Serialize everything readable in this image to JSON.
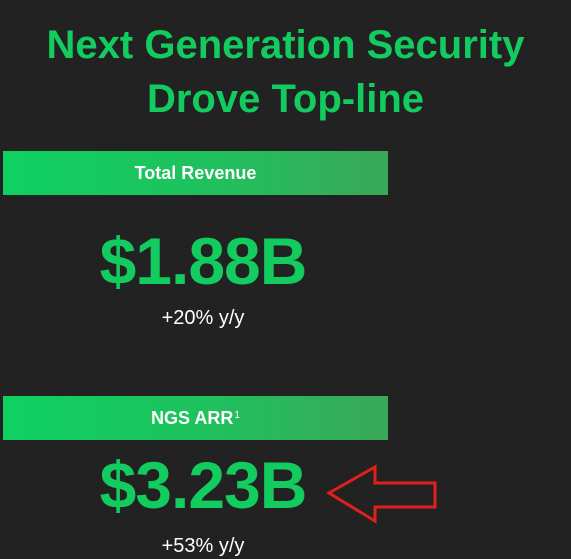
{
  "title": {
    "line1": "Next Generation Security",
    "line2": "Drove Top-line"
  },
  "revenue": {
    "label": "Total Revenue",
    "value": "$1.88B",
    "growth": "+20% y/y"
  },
  "ngs": {
    "label": "NGS ARR",
    "footnote": "1",
    "value": "$3.23B",
    "growth": "+53% y/y"
  },
  "colors": {
    "background": "#232222",
    "accent_green": "#12cc5f",
    "arrow_red": "#e0201c"
  },
  "icons": {
    "highlight_arrow": "left-arrow-icon"
  }
}
